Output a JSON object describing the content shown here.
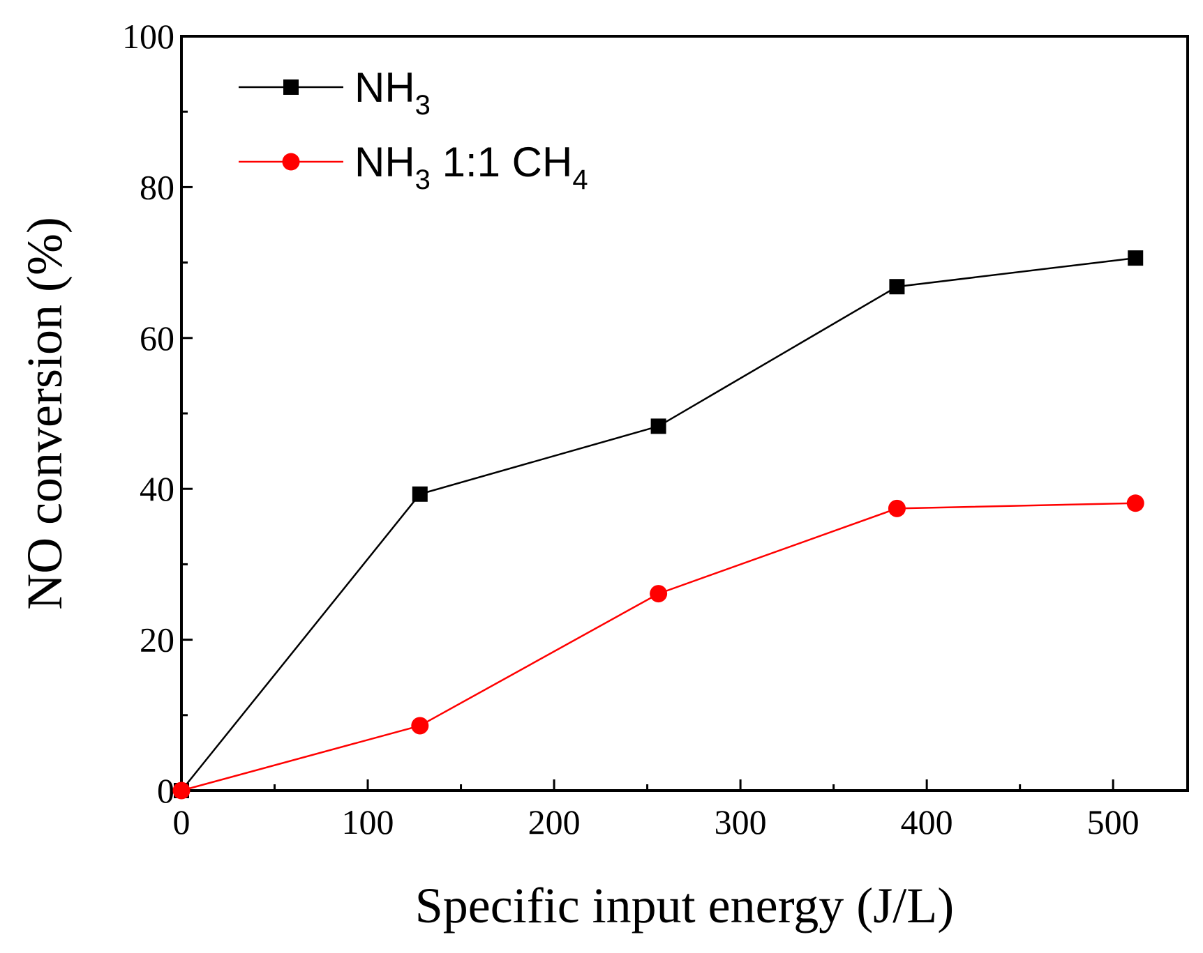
{
  "chart_data": {
    "type": "line",
    "title": "",
    "xlabel": "Specific input energy (J/L)",
    "ylabel": "NO conversion (%)",
    "xlim": [
      0,
      540
    ],
    "ylim": [
      0,
      100
    ],
    "xticks": [
      0,
      100,
      200,
      300,
      400,
      500
    ],
    "xtick_labels": [
      "0",
      "100",
      "200",
      "300",
      "400",
      "500"
    ],
    "yticks": [
      0,
      20,
      40,
      60,
      80,
      100
    ],
    "ytick_labels": [
      "0",
      "20",
      "40",
      "60",
      "80",
      "100"
    ],
    "x_minor_step": 50,
    "y_minor_step": 10,
    "legend_position": "top-left",
    "series": [
      {
        "name": "NH3",
        "legend_parts": [
          [
            "NH",
            ""
          ],
          [
            "3",
            "sub"
          ]
        ],
        "marker": "square",
        "color": "#000000",
        "x": [
          0,
          128,
          256,
          384,
          512
        ],
        "y": [
          0,
          39.3,
          48.3,
          66.8,
          70.6
        ]
      },
      {
        "name": "NH3 1:1 CH4",
        "legend_parts": [
          [
            "NH",
            ""
          ],
          [
            "3",
            "sub"
          ],
          [
            " 1:1 CH",
            ""
          ],
          [
            "4",
            "sub"
          ]
        ],
        "marker": "circle",
        "color": "#ff0000",
        "x": [
          0,
          128,
          256,
          384,
          512
        ],
        "y": [
          0,
          8.6,
          26.1,
          37.4,
          38.1
        ]
      }
    ]
  }
}
